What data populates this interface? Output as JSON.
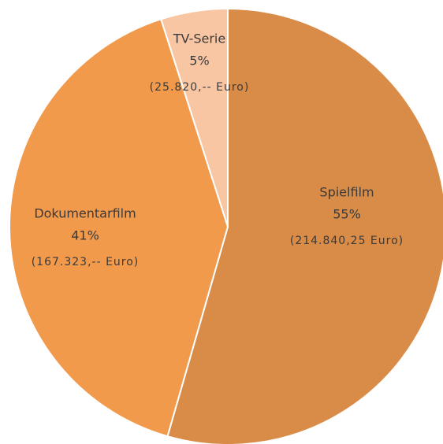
{
  "chart_data": {
    "type": "pie",
    "categories": [
      "Spielfilm",
      "Dokumentarfilm",
      "TV-Serie"
    ],
    "values": [
      55,
      41,
      5
    ],
    "value_labels": [
      "55%",
      "41%",
      "5%"
    ],
    "amount_labels": [
      "(214.840,25 Euro)",
      "(167.323,-- Euro)",
      "(25.820,-- Euro)"
    ],
    "colors": [
      "#d98c48",
      "#f19a4c",
      "#f8c6a3"
    ]
  }
}
